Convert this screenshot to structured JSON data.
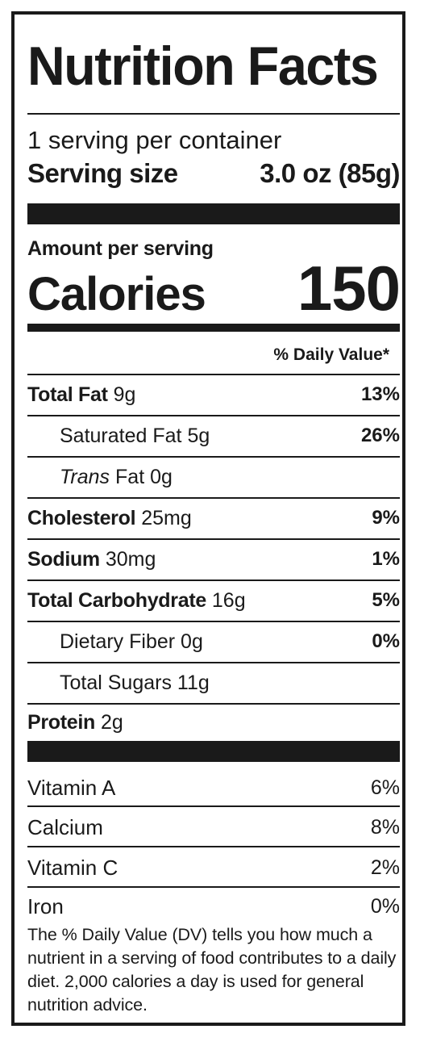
{
  "title": "Nutrition Facts",
  "servings_per_container": "1 serving per container",
  "serving_size": {
    "label": "Serving size",
    "value": "3.0 oz (85g)"
  },
  "amount_per_serving": "Amount per serving",
  "calories": {
    "label": "Calories",
    "value": "150"
  },
  "daily_value_header": "% Daily Value*",
  "nutrients": [
    {
      "name": "Total Fat",
      "amount": "9g",
      "dv": "13%",
      "bold": true,
      "indent": false
    },
    {
      "name": "Saturated Fat",
      "amount": "5g",
      "dv": "26%",
      "bold": false,
      "indent": true
    },
    {
      "name_italic": "Trans",
      "name": "Fat",
      "amount": "0g",
      "dv": "",
      "bold": false,
      "indent": true
    },
    {
      "name": "Cholesterol",
      "amount": "25mg",
      "dv": "9%",
      "bold": true,
      "indent": false
    },
    {
      "name": "Sodium",
      "amount": "30mg",
      "dv": "1%",
      "bold": true,
      "indent": false
    },
    {
      "name": "Total Carbohydrate",
      "amount": "16g",
      "dv": "5%",
      "bold": true,
      "indent": false
    },
    {
      "name": "Dietary Fiber",
      "amount": "0g",
      "dv": "0%",
      "bold": false,
      "indent": true
    },
    {
      "name": "Total Sugars",
      "amount": "11g",
      "dv": "",
      "bold": false,
      "indent": true
    },
    {
      "name": "Protein",
      "amount": "2g",
      "dv": "",
      "bold": true,
      "indent": false
    }
  ],
  "vitamins": [
    {
      "name": "Vitamin A",
      "dv": "6%"
    },
    {
      "name": "Calcium",
      "dv": "8%"
    },
    {
      "name": "Vitamin C",
      "dv": "2%"
    },
    {
      "name": "Iron",
      "dv": "0%"
    }
  ],
  "footnote": "The % Daily Value (DV) tells you how much a nutrient in a serving of food contributes to a daily diet. 2,000 calories a day is used for general nutrition advice."
}
